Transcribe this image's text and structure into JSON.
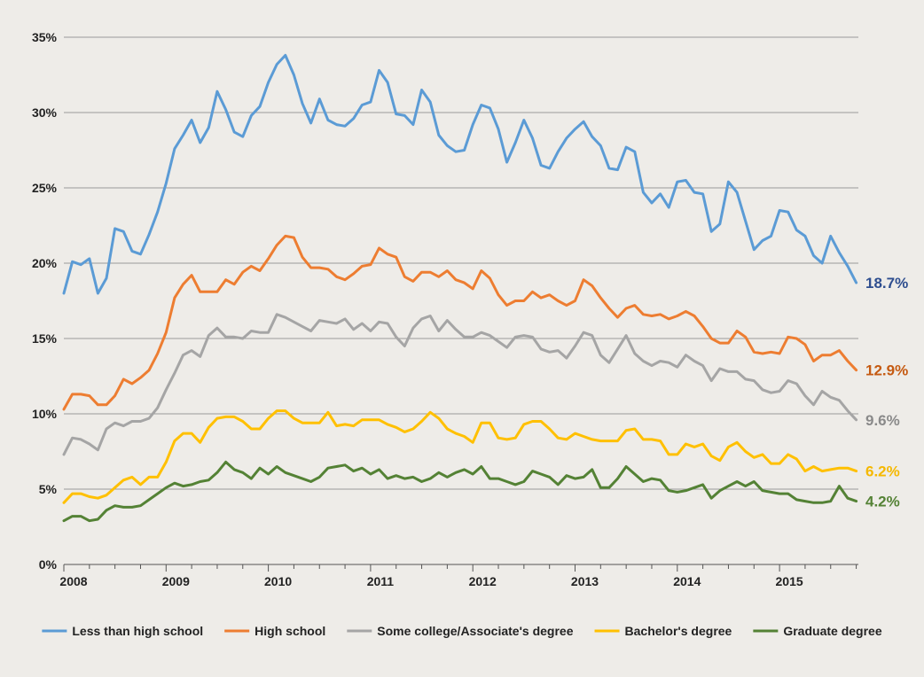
{
  "chart_data": {
    "type": "line",
    "title": "",
    "xlabel": "",
    "ylabel": "",
    "ylim": [
      0,
      35
    ],
    "yticks": [
      0,
      5,
      10,
      15,
      20,
      25,
      30,
      35
    ],
    "ytick_labels": [
      "0%",
      "5%",
      "10%",
      "15%",
      "20%",
      "25%",
      "30%",
      "35%"
    ],
    "xlim": [
      "2008-01",
      "2015-09"
    ],
    "xtick_labels": [
      "2008",
      "2009",
      "2010",
      "2011",
      "2012",
      "2013",
      "2014",
      "2015"
    ],
    "grid": "horizontal",
    "legend_position": "bottom",
    "series": [
      {
        "name": "Less than high school",
        "color": "#5b9bd5",
        "end_label": "18.7%",
        "end_label_color": "#2e4e8f",
        "values": [
          18.0,
          20.1,
          19.9,
          20.3,
          18.0,
          19.0,
          22.3,
          22.1,
          20.8,
          20.6,
          21.9,
          23.4,
          25.3,
          27.6,
          28.5,
          29.5,
          28.0,
          29.0,
          31.4,
          30.2,
          28.7,
          28.4,
          29.8,
          30.4,
          32.0,
          33.2,
          33.8,
          32.5,
          30.6,
          29.3,
          30.9,
          29.5,
          29.2,
          29.1,
          29.6,
          30.5,
          30.7,
          32.8,
          32.0,
          29.9,
          29.8,
          29.2,
          31.5,
          30.7,
          28.5,
          27.8,
          27.4,
          27.5,
          29.2,
          30.5,
          30.3,
          28.9,
          26.7,
          28.0,
          29.5,
          28.3,
          26.5,
          26.3,
          27.4,
          28.3,
          28.9,
          29.4,
          28.4,
          27.8,
          26.3,
          26.2,
          27.7,
          27.4,
          24.7,
          24.0,
          24.6,
          23.7,
          25.4,
          25.5,
          24.7,
          24.6,
          22.1,
          22.6,
          25.4,
          24.7,
          22.8,
          20.9,
          21.5,
          21.8,
          23.5,
          23.4,
          22.2,
          21.8,
          20.5,
          20.0,
          21.8,
          20.7,
          19.8,
          18.7
        ]
      },
      {
        "name": "High school",
        "color": "#ed7d31",
        "end_label": "12.9%",
        "end_label_color": "#c55a11",
        "values": [
          10.3,
          11.3,
          11.3,
          11.2,
          10.6,
          10.6,
          11.2,
          12.3,
          12.0,
          12.4,
          12.9,
          14.0,
          15.4,
          17.7,
          18.6,
          19.2,
          18.1,
          18.1,
          18.1,
          18.9,
          18.6,
          19.4,
          19.8,
          19.5,
          20.3,
          21.2,
          21.8,
          21.7,
          20.4,
          19.7,
          19.7,
          19.6,
          19.1,
          18.9,
          19.3,
          19.8,
          19.9,
          21.0,
          20.6,
          20.4,
          19.1,
          18.8,
          19.4,
          19.4,
          19.1,
          19.5,
          18.9,
          18.7,
          18.3,
          19.5,
          19.0,
          17.9,
          17.2,
          17.5,
          17.5,
          18.1,
          17.7,
          17.9,
          17.5,
          17.2,
          17.5,
          18.9,
          18.5,
          17.7,
          17.0,
          16.4,
          17.0,
          17.2,
          16.6,
          16.5,
          16.6,
          16.3,
          16.5,
          16.8,
          16.5,
          15.8,
          15.0,
          14.7,
          14.7,
          15.5,
          15.1,
          14.1,
          14.0,
          14.1,
          14.0,
          15.1,
          15.0,
          14.6,
          13.5,
          13.9,
          13.9,
          14.2,
          13.5,
          12.9
        ]
      },
      {
        "name": "Some college/Associate's degree",
        "color": "#a5a5a5",
        "end_label": "9.6%",
        "end_label_color": "#8a8a8a",
        "values": [
          7.3,
          8.4,
          8.3,
          8.0,
          7.6,
          9.0,
          9.4,
          9.2,
          9.5,
          9.5,
          9.7,
          10.4,
          11.6,
          12.7,
          13.9,
          14.2,
          13.8,
          15.2,
          15.7,
          15.1,
          15.1,
          15.0,
          15.5,
          15.4,
          15.4,
          16.6,
          16.4,
          16.1,
          15.8,
          15.5,
          16.2,
          16.1,
          16.0,
          16.3,
          15.6,
          16.0,
          15.5,
          16.1,
          16.0,
          15.1,
          14.5,
          15.7,
          16.3,
          16.5,
          15.5,
          16.2,
          15.6,
          15.1,
          15.1,
          15.4,
          15.2,
          14.8,
          14.4,
          15.1,
          15.2,
          15.1,
          14.3,
          14.1,
          14.2,
          13.7,
          14.5,
          15.4,
          15.2,
          13.9,
          13.4,
          14.3,
          15.2,
          14.0,
          13.5,
          13.2,
          13.5,
          13.4,
          13.1,
          13.9,
          13.5,
          13.2,
          12.2,
          13.0,
          12.8,
          12.8,
          12.3,
          12.2,
          11.6,
          11.4,
          11.5,
          12.2,
          12.0,
          11.2,
          10.6,
          11.5,
          11.1,
          10.9,
          10.2,
          9.6
        ]
      },
      {
        "name": "Bachelor's degree",
        "color": "#ffc000",
        "end_label": "6.2%",
        "end_label_color": "#f5b800",
        "values": [
          4.1,
          4.7,
          4.7,
          4.5,
          4.4,
          4.6,
          5.1,
          5.6,
          5.8,
          5.3,
          5.8,
          5.8,
          6.8,
          8.2,
          8.7,
          8.7,
          8.1,
          9.1,
          9.7,
          9.8,
          9.8,
          9.5,
          9.0,
          9.0,
          9.7,
          10.2,
          10.2,
          9.7,
          9.4,
          9.4,
          9.4,
          10.1,
          9.2,
          9.3,
          9.2,
          9.6,
          9.6,
          9.6,
          9.3,
          9.1,
          8.8,
          9.0,
          9.5,
          10.1,
          9.7,
          9.0,
          8.7,
          8.5,
          8.1,
          9.4,
          9.4,
          8.4,
          8.3,
          8.4,
          9.3,
          9.5,
          9.5,
          9.0,
          8.4,
          8.3,
          8.7,
          8.5,
          8.3,
          8.2,
          8.2,
          8.2,
          8.9,
          9.0,
          8.3,
          8.3,
          8.2,
          7.3,
          7.3,
          8.0,
          7.8,
          8.0,
          7.2,
          6.9,
          7.8,
          8.1,
          7.5,
          7.1,
          7.3,
          6.7,
          6.7,
          7.3,
          7.0,
          6.2,
          6.5,
          6.2,
          6.3,
          6.4,
          6.4,
          6.2
        ]
      },
      {
        "name": "Graduate degree",
        "color": "#548235",
        "end_label": "4.2%",
        "end_label_color": "#548235",
        "values": [
          2.9,
          3.2,
          3.2,
          2.9,
          3.0,
          3.6,
          3.9,
          3.8,
          3.8,
          3.9,
          4.3,
          4.7,
          5.1,
          5.4,
          5.2,
          5.3,
          5.5,
          5.6,
          6.1,
          6.8,
          6.3,
          6.1,
          5.7,
          6.4,
          6.0,
          6.5,
          6.1,
          5.9,
          5.7,
          5.5,
          5.8,
          6.4,
          6.5,
          6.6,
          6.2,
          6.4,
          6.0,
          6.3,
          5.7,
          5.9,
          5.7,
          5.8,
          5.5,
          5.7,
          6.1,
          5.8,
          6.1,
          6.3,
          6.0,
          6.5,
          5.7,
          5.7,
          5.5,
          5.3,
          5.5,
          6.2,
          6.0,
          5.8,
          5.3,
          5.9,
          5.7,
          5.8,
          6.3,
          5.1,
          5.1,
          5.7,
          6.5,
          6.0,
          5.5,
          5.7,
          5.6,
          4.9,
          4.8,
          4.9,
          5.1,
          5.3,
          4.4,
          4.9,
          5.2,
          5.5,
          5.2,
          5.5,
          4.9,
          4.8,
          4.7,
          4.7,
          4.3,
          4.2,
          4.1,
          4.1,
          4.2,
          5.2,
          4.4,
          4.2
        ]
      }
    ]
  }
}
